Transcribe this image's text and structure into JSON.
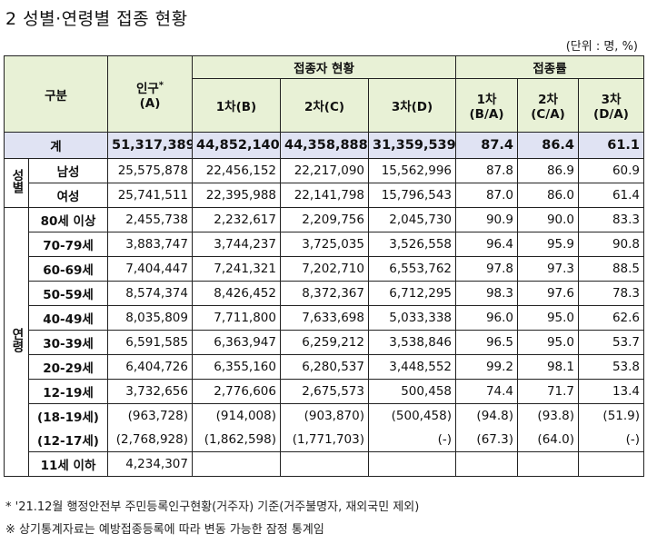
{
  "title": "2 성별·연령별 접종 현황",
  "unit_note": "(단위 : 명, %)",
  "header": {
    "category": "구분",
    "population_line1": "인구",
    "population_mark": "*",
    "population_line2": "(A)",
    "vaccinated_group": "접종자 현황",
    "rate_group": "접종률",
    "dose1": "1차(B)",
    "dose2": "2차(C)",
    "dose3": "3차(D)",
    "rate1_line1": "1차",
    "rate1_line2": "(B/A)",
    "rate2_line1": "2차",
    "rate2_line2": "(C/A)",
    "rate3_line1": "3차",
    "rate3_line2": "(D/A)"
  },
  "total": {
    "label": "계",
    "values": [
      "51,317,389",
      "44,852,140",
      "44,358,888",
      "31,359,539",
      "87.4",
      "86.4",
      "61.1"
    ]
  },
  "sex_group_label": "성별",
  "sex_rows": [
    {
      "label": "남성",
      "values": [
        "25,575,878",
        "22,456,152",
        "22,217,090",
        "15,562,996",
        "87.8",
        "86.9",
        "60.9"
      ]
    },
    {
      "label": "여성",
      "values": [
        "25,741,511",
        "22,395,988",
        "22,141,798",
        "15,796,543",
        "87.0",
        "86.0",
        "61.4"
      ]
    }
  ],
  "age_group_label": "연령",
  "age_rows": [
    {
      "label": "80세 이상",
      "values": [
        "2,455,738",
        "2,232,617",
        "2,209,756",
        "2,045,730",
        "90.9",
        "90.0",
        "83.3"
      ]
    },
    {
      "label": "70-79세",
      "values": [
        "3,883,747",
        "3,744,237",
        "3,725,035",
        "3,526,558",
        "96.4",
        "95.9",
        "90.8"
      ]
    },
    {
      "label": "60-69세",
      "values": [
        "7,404,447",
        "7,241,321",
        "7,202,710",
        "6,553,762",
        "97.8",
        "97.3",
        "88.5"
      ]
    },
    {
      "label": "50-59세",
      "values": [
        "8,574,374",
        "8,426,452",
        "8,372,367",
        "6,712,295",
        "98.3",
        "97.6",
        "78.3"
      ]
    },
    {
      "label": "40-49세",
      "values": [
        "8,035,809",
        "7,711,800",
        "7,633,698",
        "5,033,338",
        "96.0",
        "95.0",
        "62.6"
      ]
    },
    {
      "label": "30-39세",
      "values": [
        "6,591,585",
        "6,363,947",
        "6,259,212",
        "3,538,846",
        "96.5",
        "95.0",
        "53.7"
      ]
    },
    {
      "label": "20-29세",
      "values": [
        "6,404,726",
        "6,355,160",
        "6,280,537",
        "3,448,552",
        "99.2",
        "98.1",
        "53.8"
      ]
    },
    {
      "label": "12-19세",
      "values": [
        "3,732,656",
        "2,776,606",
        "2,675,573",
        "500,458",
        "74.4",
        "71.7",
        "13.4"
      ]
    }
  ],
  "sub_rows": [
    {
      "label": "(18-19세)",
      "values": [
        "(963,728)",
        "(914,008)",
        "(903,870)",
        "(500,458)",
        "(94.8)",
        "(93.8)",
        "(51.9)"
      ]
    },
    {
      "label": "(12-17세)",
      "values": [
        "(2,768,928)",
        "(1,862,598)",
        "(1,771,703)",
        "(-)",
        "(67.3)",
        "(64.0)",
        "(-)"
      ]
    }
  ],
  "under11": {
    "label": "11세 이하",
    "population": "4,234,307"
  },
  "footnotes": [
    "* '21.12월 행정안전부 주민등록인구현황(거주자) 기준(거주불명자, 재외국민 제외)",
    "※ 상기통계자료는 예방접종등록에 따라 변동 가능한 잠정 통계임"
  ]
}
